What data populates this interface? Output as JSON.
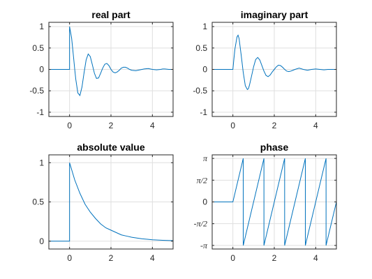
{
  "chart_data": [
    {
      "type": "line",
      "title": "real part",
      "xlim": [
        -1,
        5
      ],
      "ylim": [
        -1.1,
        1.1
      ],
      "xticks": [
        0,
        2,
        4
      ],
      "xtick_labels": [
        "0",
        "2",
        "4"
      ],
      "yticks": [
        -1,
        -0.5,
        0,
        0.5,
        1
      ],
      "ytick_labels": [
        "-1",
        "-0.5",
        "0",
        "0.5",
        "1"
      ],
      "grid": true,
      "series": [
        {
          "x": [
            -1,
            0,
            0,
            0.1,
            0.2,
            0.25,
            0.3,
            0.4,
            0.5,
            0.6,
            0.7,
            0.8,
            0.9,
            1.0,
            1.1,
            1.2,
            1.3,
            1.4,
            1.5,
            1.6,
            1.7,
            1.8,
            1.9,
            2.0,
            2.1,
            2.2,
            2.3,
            2.4,
            2.5,
            2.6,
            2.7,
            2.8,
            2.9,
            3.0,
            3.2,
            3.4,
            3.5,
            3.6,
            3.8,
            4.0,
            4.2,
            4.4,
            4.5,
            4.6,
            4.8,
            5.0
          ],
          "y": [
            0,
            0,
            1.0,
            0.73,
            0.25,
            0.0,
            -0.23,
            -0.55,
            -0.61,
            -0.41,
            -0.08,
            0.22,
            0.36,
            0.3,
            0.11,
            -0.09,
            -0.21,
            -0.2,
            -0.09,
            0.03,
            0.12,
            0.14,
            0.09,
            0.0,
            -0.06,
            -0.08,
            -0.06,
            -0.02,
            0.03,
            0.05,
            0.05,
            0.03,
            0.0,
            -0.02,
            -0.03,
            -0.01,
            0.0,
            0.01,
            0.02,
            0.0,
            -0.01,
            0.0,
            0.01,
            0.01,
            0.0,
            0.0
          ]
        }
      ]
    },
    {
      "type": "line",
      "title": "imaginary part",
      "xlim": [
        -1,
        5
      ],
      "ylim": [
        -1.1,
        1.1
      ],
      "xticks": [
        0,
        2,
        4
      ],
      "xtick_labels": [
        "0",
        "2",
        "4"
      ],
      "yticks": [
        -1,
        -0.5,
        0,
        0.5,
        1
      ],
      "ytick_labels": [
        "-1",
        "-0.5",
        "0",
        "0.5",
        "1"
      ],
      "grid": true,
      "series": [
        {
          "x": [
            -1,
            0,
            0.05,
            0.1,
            0.2,
            0.25,
            0.3,
            0.4,
            0.5,
            0.6,
            0.7,
            0.75,
            0.8,
            0.9,
            1.0,
            1.1,
            1.2,
            1.3,
            1.4,
            1.5,
            1.6,
            1.7,
            1.8,
            1.9,
            2.0,
            2.1,
            2.2,
            2.3,
            2.4,
            2.5,
            2.6,
            2.7,
            2.8,
            2.9,
            3.0,
            3.2,
            3.4,
            3.6,
            3.8,
            4.0,
            4.2,
            4.4,
            4.6,
            4.8,
            5.0
          ],
          "y": [
            0,
            0,
            0.25,
            0.48,
            0.76,
            0.8,
            0.72,
            0.34,
            -0.07,
            -0.38,
            -0.47,
            -0.45,
            -0.37,
            -0.16,
            0.06,
            0.23,
            0.28,
            0.22,
            0.09,
            -0.04,
            -0.14,
            -0.17,
            -0.13,
            -0.06,
            0.0,
            0.06,
            0.1,
            0.09,
            0.05,
            0.0,
            -0.04,
            -0.05,
            -0.04,
            -0.02,
            0.0,
            0.03,
            0.0,
            -0.02,
            0.0,
            0.01,
            0.0,
            -0.01,
            0.0,
            0.0,
            0.0
          ]
        }
      ]
    },
    {
      "type": "line",
      "title": "absolute value",
      "xlim": [
        -1,
        5
      ],
      "ylim": [
        -0.1,
        1.1
      ],
      "xticks": [
        0,
        2,
        4
      ],
      "xtick_labels": [
        "0",
        "2",
        "4"
      ],
      "yticks": [
        0,
        0.5,
        1
      ],
      "ytick_labels": [
        "0",
        "0.5",
        "1"
      ],
      "grid": true,
      "series": [
        {
          "x": [
            -1,
            0,
            0,
            0.25,
            0.5,
            0.75,
            1.0,
            1.25,
            1.5,
            1.75,
            2.0,
            2.25,
            2.5,
            2.75,
            3.0,
            3.25,
            3.5,
            3.75,
            4.0,
            4.25,
            4.5,
            4.75,
            5.0
          ],
          "y": [
            0,
            0,
            1.0,
            0.78,
            0.61,
            0.47,
            0.37,
            0.29,
            0.22,
            0.17,
            0.14,
            0.11,
            0.08,
            0.065,
            0.05,
            0.04,
            0.03,
            0.024,
            0.018,
            0.014,
            0.011,
            0.009,
            0.007
          ]
        }
      ]
    },
    {
      "type": "line",
      "title": "phase",
      "xlim": [
        -1,
        5
      ],
      "ylim": [
        -3.4,
        3.4
      ],
      "xticks": [
        0,
        2,
        4
      ],
      "xtick_labels": [
        "0",
        "2",
        "4"
      ],
      "yticks": [
        -3.14159,
        -1.5708,
        0,
        1.5708,
        3.14159
      ],
      "ytick_labels": [
        "-π",
        "-π/2",
        "0",
        "π/2",
        "π"
      ],
      "grid": true,
      "series": [
        {
          "x": [
            -1,
            0,
            0.5,
            0.5,
            1.5,
            1.5,
            2.5,
            2.5,
            3.5,
            3.5,
            4.5,
            4.5,
            5.0
          ],
          "y": [
            0,
            0,
            3.14159,
            -3.14159,
            3.14159,
            -3.14159,
            3.14159,
            -3.14159,
            3.14159,
            -3.14159,
            3.14159,
            -3.14159,
            0
          ]
        }
      ]
    }
  ]
}
